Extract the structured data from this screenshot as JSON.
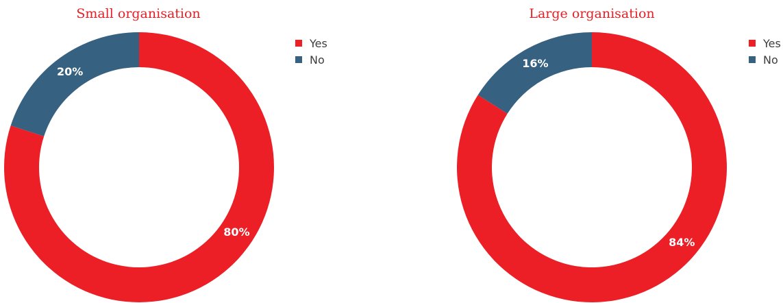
{
  "chart_data": [
    {
      "type": "pie",
      "title": "Small organisation",
      "categories": [
        "Yes",
        "No"
      ],
      "values": [
        80,
        20
      ],
      "labels": [
        "80%",
        "20%"
      ],
      "colors": [
        "#ec1f26",
        "#366180"
      ],
      "legend": "right"
    },
    {
      "type": "pie",
      "title": "Large organisation",
      "categories": [
        "Yes",
        "No"
      ],
      "values": [
        84,
        16
      ],
      "labels": [
        "84%",
        "16%"
      ],
      "colors": [
        "#ec1f26",
        "#366180"
      ],
      "legend": "right"
    }
  ]
}
